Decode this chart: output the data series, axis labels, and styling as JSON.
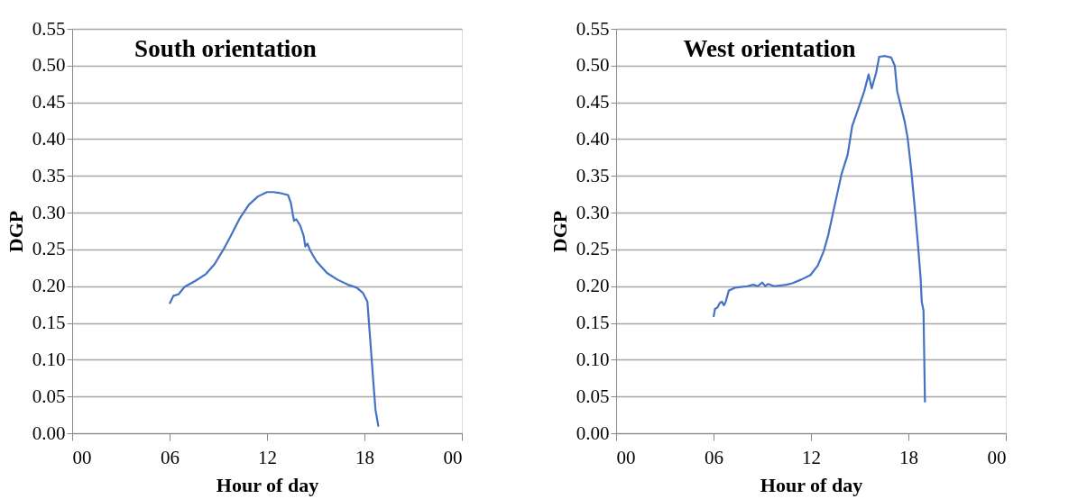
{
  "chart_data": [
    {
      "type": "line",
      "title": "South orientation",
      "xlabel": "Hour of day",
      "ylabel": "DGP",
      "grid": "y",
      "line_style": "solid",
      "marker": "none",
      "xlim": [
        0,
        24
      ],
      "xticks": [
        {
          "value": 0,
          "label": "00"
        },
        {
          "value": 6,
          "label": "06"
        },
        {
          "value": 12,
          "label": "12"
        },
        {
          "value": 18,
          "label": "18"
        },
        {
          "value": 24,
          "label": "00"
        }
      ],
      "ylim": [
        0,
        0.55
      ],
      "yticks": [
        {
          "value": 0,
          "label": "0.00"
        },
        {
          "value": 0.05,
          "label": "0.05"
        },
        {
          "value": 0.1,
          "label": "0.10"
        },
        {
          "value": 0.15,
          "label": "0.15"
        },
        {
          "value": 0.2,
          "label": "0.20"
        },
        {
          "value": 0.25,
          "label": "0.25"
        },
        {
          "value": 0.3,
          "label": "0.30"
        },
        {
          "value": 0.35,
          "label": "0.35"
        },
        {
          "value": 0.4,
          "label": "0.40"
        },
        {
          "value": 0.45,
          "label": "0.45"
        },
        {
          "value": 0.5,
          "label": "0.50"
        },
        {
          "value": 0.55,
          "label": "0.55"
        }
      ],
      "x": [
        6.0,
        6.24,
        6.55,
        6.92,
        7.57,
        8.21,
        8.77,
        9.32,
        9.78,
        10.34,
        10.89,
        11.44,
        12.0,
        12.37,
        12.73,
        13.29,
        13.47,
        13.66,
        13.8,
        14.03,
        14.25,
        14.36,
        14.49,
        14.67,
        15.04,
        15.69,
        16.33,
        16.98,
        17.53,
        17.9,
        18.18,
        18.36,
        18.55,
        18.68,
        18.86
      ],
      "series": [
        {
          "color": "#4472c4",
          "values": [
            0.176,
            0.187,
            0.189,
            0.199,
            0.207,
            0.216,
            0.23,
            0.25,
            0.269,
            0.293,
            0.311,
            0.322,
            0.328,
            0.328,
            0.327,
            0.324,
            0.313,
            0.289,
            0.291,
            0.283,
            0.269,
            0.254,
            0.258,
            0.248,
            0.234,
            0.218,
            0.209,
            0.202,
            0.198,
            0.191,
            0.179,
            0.126,
            0.069,
            0.032,
            0.009
          ]
        }
      ]
    },
    {
      "type": "line",
      "title": "West orientation",
      "xlabel": "Hour of day",
      "ylabel": "DGP",
      "grid": "y",
      "line_style": "solid",
      "marker": "none",
      "xlim": [
        0,
        24
      ],
      "xticks": [
        {
          "value": 0,
          "label": "00"
        },
        {
          "value": 6,
          "label": "06"
        },
        {
          "value": 12,
          "label": "12"
        },
        {
          "value": 18,
          "label": "18"
        },
        {
          "value": 24,
          "label": "00"
        }
      ],
      "ylim": [
        0,
        0.55
      ],
      "yticks": [
        {
          "value": 0,
          "label": "0.00"
        },
        {
          "value": 0.05,
          "label": "0.05"
        },
        {
          "value": 0.1,
          "label": "0.10"
        },
        {
          "value": 0.15,
          "label": "0.15"
        },
        {
          "value": 0.2,
          "label": "0.20"
        },
        {
          "value": 0.25,
          "label": "0.25"
        },
        {
          "value": 0.3,
          "label": "0.30"
        },
        {
          "value": 0.35,
          "label": "0.35"
        },
        {
          "value": 0.4,
          "label": "0.40"
        },
        {
          "value": 0.45,
          "label": "0.45"
        },
        {
          "value": 0.5,
          "label": "0.50"
        },
        {
          "value": 0.55,
          "label": "0.55"
        }
      ],
      "x": [
        6.0,
        6.09,
        6.24,
        6.38,
        6.51,
        6.64,
        6.75,
        6.94,
        7.34,
        8.08,
        8.45,
        8.73,
        9.0,
        9.19,
        9.34,
        9.74,
        10.48,
        10.85,
        11.4,
        11.96,
        12.42,
        12.79,
        13.06,
        13.34,
        13.62,
        13.89,
        14.26,
        14.54,
        14.91,
        15.28,
        15.55,
        15.74,
        16.01,
        16.2,
        16.57,
        16.94,
        17.16,
        17.31,
        17.58,
        17.77,
        17.95,
        18.17,
        18.41,
        18.6,
        18.75,
        18.82,
        18.93,
        19.02
      ],
      "series": [
        {
          "color": "#4472c4",
          "values": [
            0.158,
            0.169,
            0.171,
            0.177,
            0.179,
            0.174,
            0.179,
            0.194,
            0.198,
            0.2,
            0.202,
            0.2,
            0.205,
            0.2,
            0.203,
            0.2,
            0.202,
            0.204,
            0.209,
            0.215,
            0.228,
            0.248,
            0.269,
            0.298,
            0.326,
            0.353,
            0.379,
            0.418,
            0.441,
            0.465,
            0.488,
            0.469,
            0.49,
            0.512,
            0.513,
            0.511,
            0.5,
            0.465,
            0.441,
            0.424,
            0.402,
            0.359,
            0.302,
            0.253,
            0.212,
            0.179,
            0.167,
            0.042
          ]
        }
      ]
    }
  ]
}
